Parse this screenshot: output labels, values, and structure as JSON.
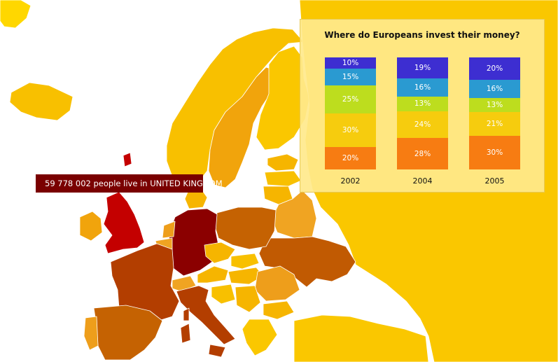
{
  "tooltip": {
    "text": "59 778 002 people live in UNITED KINGDOM"
  },
  "palette": {
    "sea": "#ffffff",
    "land_default": "#fac700",
    "land_light": "#f6b500",
    "land_mid": "#ee9e1b",
    "land_dark": "#c56202",
    "land_darker": "#b33e00",
    "land_highlight": "#8b0000",
    "uk_highlight": "#c40000"
  },
  "chart_data": {
    "type": "bar",
    "stacked": true,
    "title": "Where do Europeans invest their money?",
    "categories": [
      "2002",
      "2004",
      "2005"
    ],
    "series": [
      {
        "color": "#f77c12",
        "values": [
          20,
          28,
          30
        ]
      },
      {
        "color": "#f6cc0e",
        "values": [
          30,
          24,
          21
        ]
      },
      {
        "color": "#bddd1e",
        "values": [
          25,
          13,
          13
        ]
      },
      {
        "color": "#2a9ad1",
        "values": [
          15,
          16,
          16
        ]
      },
      {
        "color": "#3d2ed1",
        "values": [
          10,
          19,
          20
        ]
      }
    ],
    "value_labels": [
      [
        "20%",
        "30%",
        "25%",
        "15%",
        "10%"
      ],
      [
        "28%",
        "24%",
        "13%",
        "16%",
        "19%"
      ],
      [
        "30%",
        "21%",
        "13%",
        "16%",
        "20%"
      ]
    ],
    "ylim": [
      0,
      100
    ],
    "legend": "none"
  }
}
